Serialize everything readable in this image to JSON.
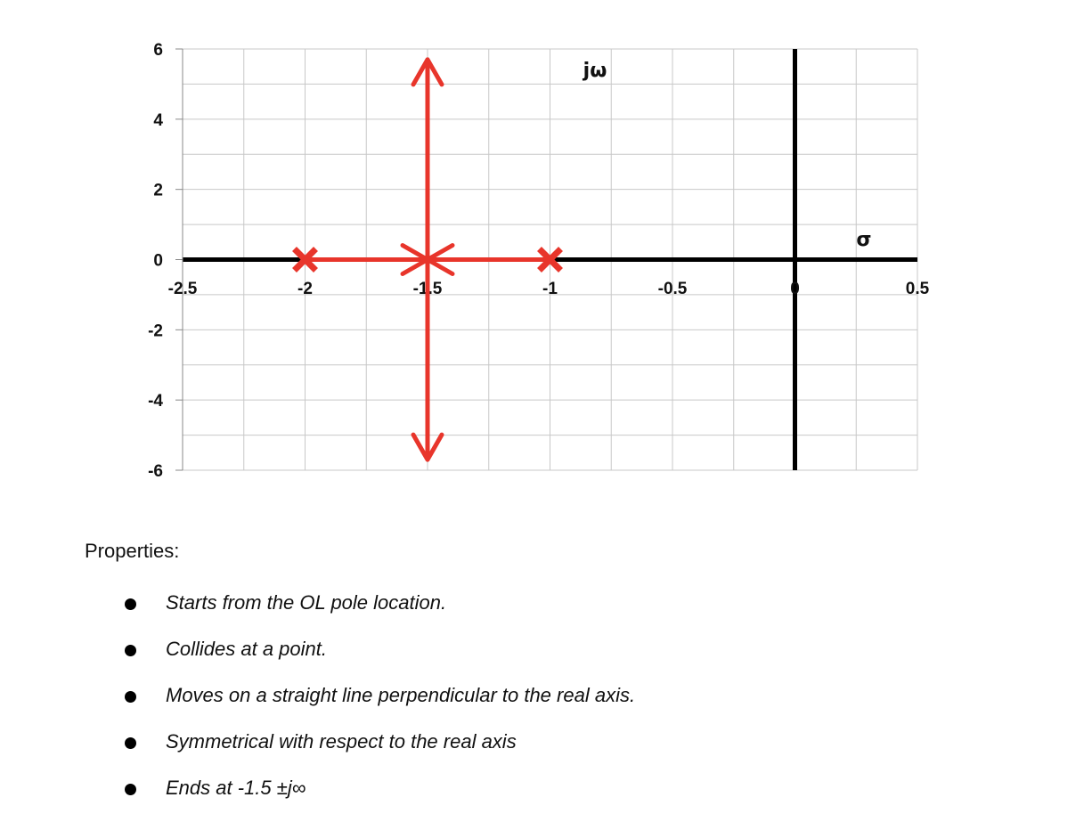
{
  "chart_data": {
    "type": "scatter",
    "title": "",
    "xlabel": "σ",
    "ylabel": "jω",
    "xlim": [
      -2.5,
      0.5
    ],
    "ylim": [
      -6,
      6
    ],
    "x_ticks": [
      "-2.5",
      "-2",
      "-1.5",
      "-1",
      "-0.5",
      "0",
      "0.5"
    ],
    "y_ticks": [
      "6",
      "4",
      "2",
      "0",
      "-2",
      "-4",
      "-6"
    ],
    "x_minor_step": 0.25,
    "y_minor_step": 1,
    "grid": true,
    "poles": [
      {
        "x": -2,
        "y": 0
      },
      {
        "x": -1,
        "y": 0
      }
    ],
    "breakaway_point": {
      "x": -1.5,
      "y": 0
    },
    "locus_segments": [
      {
        "from": {
          "x": -2,
          "y": 0
        },
        "to": {
          "x": -1.5,
          "y": 0
        },
        "arrow": true
      },
      {
        "from": {
          "x": -1,
          "y": 0
        },
        "to": {
          "x": -1.5,
          "y": 0
        },
        "arrow": true
      },
      {
        "from": {
          "x": -1.5,
          "y": 0
        },
        "to": {
          "x": -1.5,
          "y": 5.7
        },
        "arrow": true
      },
      {
        "from": {
          "x": -1.5,
          "y": 0
        },
        "to": {
          "x": -1.5,
          "y": -5.7
        },
        "arrow": true
      }
    ],
    "colors": {
      "locus": "#e8352b",
      "axes": "#000000",
      "grid": "#c8c8c8"
    }
  },
  "properties": {
    "title": "Properties:",
    "items": [
      "Starts from the OL pole location.",
      "Collides at a point.",
      "Moves on a straight line perpendicular to the real axis.",
      "Symmetrical with respect to the real axis",
      "Ends at -1.5 ±j∞"
    ]
  }
}
